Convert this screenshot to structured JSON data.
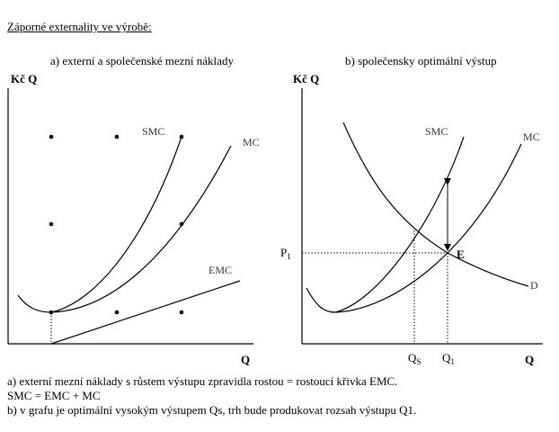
{
  "title": "Záporné externality ve výrobě:",
  "panel_a": {
    "subtitle": "a) externí a společenské mezní náklady",
    "y_axis_label": "Kč Q",
    "x_axis_label": "Q",
    "curves": {
      "smc": "SMC",
      "mc": "MC",
      "emc": "EMC"
    }
  },
  "panel_b": {
    "subtitle": "b) společensky optimální výstup",
    "y_axis_label": "Kč Q",
    "x_axis_label": "Q",
    "curves": {
      "smc": "SMC",
      "mc": "MC",
      "demand": "D"
    },
    "point_label": "E",
    "price_label": "P",
    "price_sub": "1",
    "qs_label": "Q",
    "qs_sub": "S",
    "q1_label": "Q",
    "q1_sub": "1"
  },
  "footer": {
    "line1": "a) externí mezní náklady s růstem výstupu zpravidla rostou = rostoucí křivka EMC.",
    "line2": "SMC = EMC + MC",
    "line3": "b) v grafu je optimální vysokým výstupem Qs,  trh bude produkovat rozsah výstupu Q1."
  }
}
